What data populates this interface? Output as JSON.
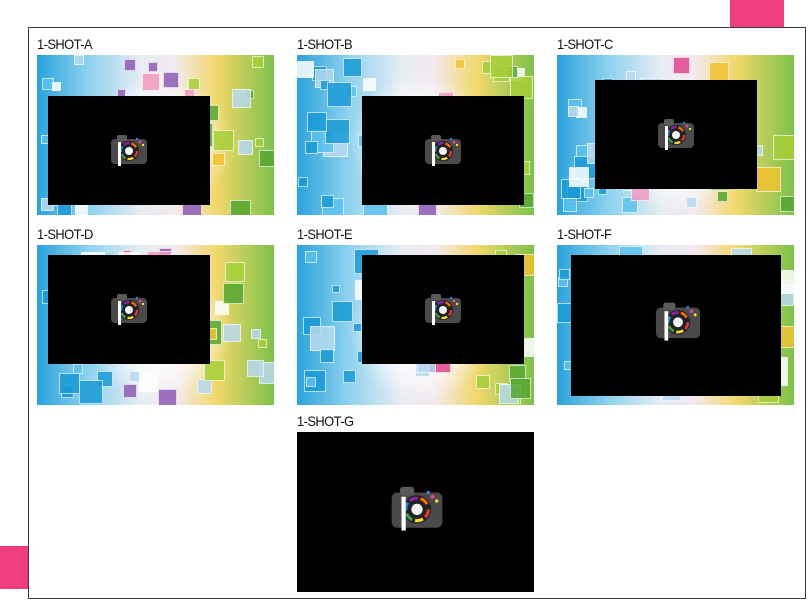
{
  "tiles": [
    {
      "label": "1-SHOT-A"
    },
    {
      "label": "1-SHOT-B"
    },
    {
      "label": "1-SHOT-C"
    },
    {
      "label": "1-SHOT-D"
    },
    {
      "label": "1-SHOT-E"
    },
    {
      "label": "1-SHOT-F"
    },
    {
      "label": "1-SHOT-G"
    }
  ],
  "colors": {
    "accent": "#ef3e7d",
    "screen": "#000000"
  },
  "icons": {
    "screen_logo": "camera-color-wheel-icon",
    "background": "colorful-squares-pattern"
  }
}
